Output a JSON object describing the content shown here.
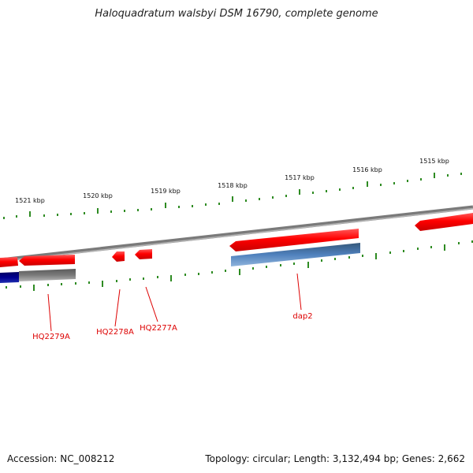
{
  "title": "Haloquadratum walsbyi DSM 16790, complete genome",
  "footer": {
    "accession": "Accession: NC_008212",
    "summary": "Topology: circular; Length: 3,132,494 bp; Genes: 2,662"
  },
  "colors": {
    "forward_gene": "#ff0000",
    "cds": "#4f81bd",
    "cds_dark": "#000080",
    "backbone": "#808080",
    "tick": "#2e8b22",
    "label": "#dd0000"
  },
  "ticks": [
    "1521 kbp",
    "1520 kbp",
    "1519 kbp",
    "1518 kbp",
    "1517 kbp",
    "1516 kbp",
    "1515 kbp"
  ],
  "genes": [
    {
      "name": "HQ2279A"
    },
    {
      "name": "HQ2278A"
    },
    {
      "name": "HQ2277A"
    },
    {
      "name": "dap2"
    }
  ]
}
